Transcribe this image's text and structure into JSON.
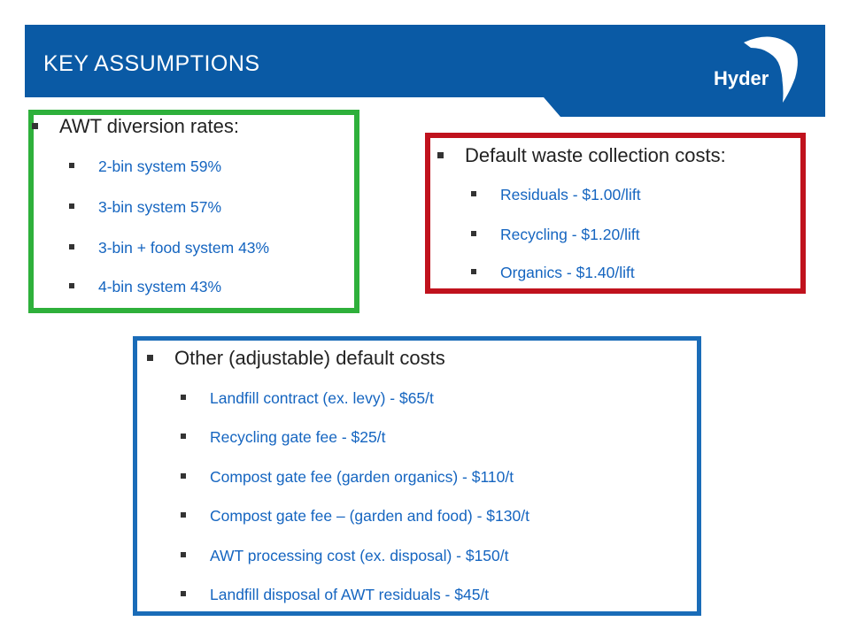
{
  "header": {
    "title": "KEY ASSUMPTIONS",
    "logo_text": "Hyder"
  },
  "colors": {
    "header_bg": "#0a5aa5",
    "green_box": "#2eb03b",
    "red_box": "#c0121d",
    "blue_box": "#1a6cb8",
    "sub_text": "#1565c0"
  },
  "diversion": {
    "heading": "AWT diversion rates:",
    "items": [
      "2-bin system 59%",
      "3-bin system 57%",
      "3-bin + food system 43%",
      "4-bin system 43%"
    ]
  },
  "collection": {
    "heading": "Default waste collection costs:",
    "items": [
      "Residuals - $1.00/lift",
      "Recycling - $1.20/lift",
      "Organics - $1.40/lift"
    ]
  },
  "other": {
    "heading": "Other (adjustable) default costs",
    "items": [
      "Landfill contract (ex. levy) - $65/t",
      "Recycling gate fee - $25/t",
      "Compost gate fee (garden organics) - $110/t",
      "Compost gate fee – (garden and food) - $130/t",
      "AWT processing cost (ex. disposal) - $150/t",
      "Landfill disposal of AWT residuals - $45/t"
    ]
  }
}
